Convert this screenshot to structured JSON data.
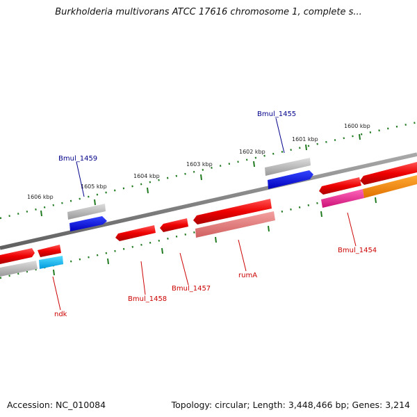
{
  "title": "Burkholderia multivorans ATCC 17616 chromosome 1, complete s...",
  "footer": {
    "accession": "Accession: NC_010084",
    "summary": "Topology: circular; Length: 3,448,466 bp; Genes: 3,214"
  },
  "colors": {
    "backbone": "#808080",
    "tick_green": "#1f7a1f",
    "forward_red": "#ee0000",
    "pseudo_pink": "#f08080",
    "magenta": "#ee3399",
    "orange": "#ff8c00",
    "blue": "#0000ee",
    "cyan": "#00bfff",
    "grey_gene": "#b0b0b0",
    "label_red": "#cc0000",
    "label_blue": "#00008b"
  },
  "scale_labels": [
    "1600 kbp",
    "1601 kbp",
    "1602 kbp",
    "1603 kbp",
    "1604 kbp",
    "1605 kbp",
    "1606 kbp"
  ],
  "gene_labels": [
    "Bmul_1455",
    "Bmul_1459",
    "Bmul_1454",
    "rumA",
    "Bmul_1457",
    "Bmul_1458",
    "ndk"
  ]
}
